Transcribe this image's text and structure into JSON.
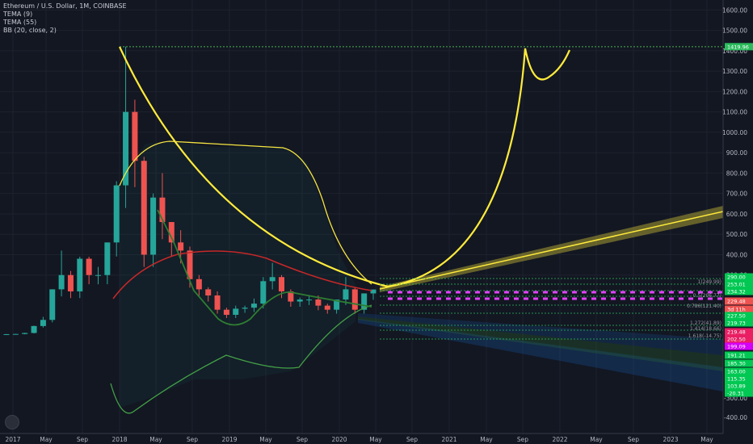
{
  "legend": {
    "title": "Ethereum / U.S. Dollar, 1M, COINBASE",
    "ind1": "TEMA (9)",
    "ind2": "TEMA (55)",
    "ind3": "BB (20, close, 2)"
  },
  "colors": {
    "background": "#131722",
    "bull": "#26a69a",
    "bear": "#ef5350",
    "yellow": "#ffeb3b",
    "bb_upper": "#f5e642",
    "bb_mid": "#c62828",
    "bb_lower": "#43a047",
    "tema_green": "#2e7d32",
    "target_line": "#4caf50"
  },
  "chart_data": {
    "type": "candlestick",
    "x_axis_labels": [
      "2017",
      "May",
      "Sep",
      "2018",
      "May",
      "Sep",
      "2019",
      "May",
      "Sep",
      "2020",
      "May",
      "Sep",
      "2021",
      "May",
      "Sep",
      "2022",
      "May",
      "Sep",
      "2023",
      "May"
    ],
    "y_axis_labels": [
      "1600.00",
      "1500.00",
      "1400.00",
      "1300.00",
      "1200.00",
      "1100.00",
      "1000.00",
      "900.00",
      "800.00",
      "700.00",
      "600.00",
      "500.00",
      "400.00",
      "300.00",
      "-300.00",
      "-400.00"
    ],
    "target_level": "1419.96",
    "price_tags": [
      {
        "label": "290.00",
        "color": "#00c853"
      },
      {
        "label": "253.01",
        "color": "#00c853"
      },
      {
        "label": "234.32",
        "color": "#00c853"
      },
      {
        "label": "229.48",
        "color": "#ef5350"
      },
      {
        "label": "3d 11h",
        "color": "#ef5350"
      },
      {
        "label": "227.50",
        "color": "#00c853"
      },
      {
        "label": "219.73",
        "color": "#00c853"
      },
      {
        "label": "219.48",
        "color": "#e91e63"
      },
      {
        "label": "202.50",
        "color": "#e91e63"
      },
      {
        "label": "199.09",
        "color": "#d500f9"
      },
      {
        "label": "191.21",
        "color": "#00c853"
      },
      {
        "label": "185.30",
        "color": "#00c853"
      },
      {
        "label": "163.00",
        "color": "#00c853"
      },
      {
        "label": "115.35",
        "color": "#00c853"
      },
      {
        "label": "103.89",
        "color": "#00c853"
      },
      {
        "label": "-20.31",
        "color": "#00c853"
      }
    ],
    "fib_labels": [
      "1(249.99)",
      "0.5(206.77)",
      "0.786(121.40)",
      "1.272(41.89)",
      "1.414(18.66)",
      "1.618(-14.75)"
    ],
    "candles": [
      {
        "o": 8,
        "h": 11,
        "c": 10
      },
      {
        "o": 10,
        "h": 12,
        "c": 11
      },
      {
        "o": 11,
        "h": 17,
        "c": 16
      },
      {
        "o": 16,
        "h": 52,
        "c": 50
      },
      {
        "o": 50,
        "h": 95,
        "c": 80
      },
      {
        "o": 80,
        "h": 230,
        "c": 230
      },
      {
        "o": 230,
        "h": 420,
        "c": 300
      },
      {
        "o": 300,
        "h": 320,
        "c": 220
      },
      {
        "o": 220,
        "h": 390,
        "c": 380
      },
      {
        "o": 380,
        "h": 390,
        "c": 300
      },
      {
        "o": 300,
        "h": 340,
        "c": 300
      },
      {
        "o": 300,
        "h": 400,
        "c": 460
      },
      {
        "o": 460,
        "h": 760,
        "c": 740
      },
      {
        "o": 740,
        "h": 1420,
        "c": 1100
      },
      {
        "o": 1100,
        "h": 1160,
        "c": 860
      },
      {
        "o": 860,
        "h": 880,
        "c": 400
      },
      {
        "o": 400,
        "h": 700,
        "c": 680
      },
      {
        "o": 680,
        "h": 800,
        "c": 560
      },
      {
        "o": 560,
        "h": 560,
        "c": 460
      },
      {
        "o": 460,
        "h": 520,
        "c": 420
      },
      {
        "o": 420,
        "h": 440,
        "c": 280
      },
      {
        "o": 280,
        "h": 300,
        "c": 230
      },
      {
        "o": 230,
        "h": 240,
        "c": 200
      },
      {
        "o": 200,
        "h": 220,
        "c": 130
      },
      {
        "o": 130,
        "h": 140,
        "c": 105
      },
      {
        "o": 105,
        "h": 150,
        "c": 135
      },
      {
        "o": 135,
        "h": 150,
        "c": 140
      },
      {
        "o": 140,
        "h": 185,
        "c": 160
      },
      {
        "o": 160,
        "h": 290,
        "c": 270
      },
      {
        "o": 270,
        "h": 360,
        "c": 290
      },
      {
        "o": 290,
        "h": 300,
        "c": 220
      },
      {
        "o": 220,
        "h": 230,
        "c": 170
      },
      {
        "o": 170,
        "h": 190,
        "c": 180
      },
      {
        "o": 180,
        "h": 200,
        "c": 180
      },
      {
        "o": 180,
        "h": 200,
        "c": 150
      },
      {
        "o": 150,
        "h": 160,
        "c": 130
      },
      {
        "o": 130,
        "h": 180,
        "c": 180
      },
      {
        "o": 180,
        "h": 290,
        "c": 230
      },
      {
        "o": 230,
        "h": 240,
        "c": 130
      },
      {
        "o": 130,
        "h": 210,
        "c": 210
      },
      {
        "o": 210,
        "h": 229,
        "c": 229
      }
    ]
  }
}
